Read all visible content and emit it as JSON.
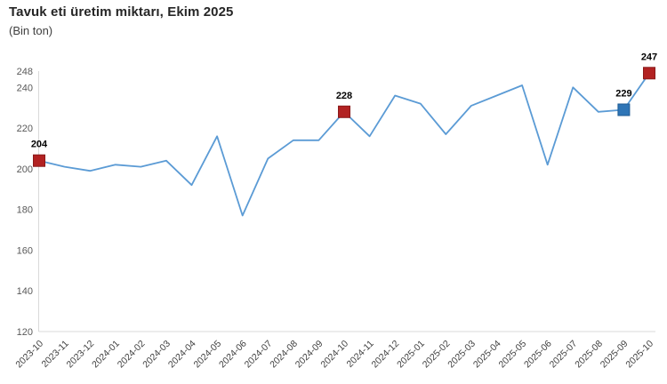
{
  "header": {
    "title": "Tavuk eti üretim miktarı, Ekim 2025",
    "subtitle": "(Bin ton)"
  },
  "chart_data": {
    "type": "line",
    "title": "Tavuk eti üretim miktarı, Ekim 2025",
    "subtitle": "(Bin ton)",
    "unit": "Bin ton",
    "x": [
      "2023-10",
      "2023-11",
      "2023-12",
      "2024-01",
      "2024-02",
      "2024-03",
      "2024-04",
      "2024-05",
      "2024-06",
      "2024-07",
      "2024-08",
      "2024-09",
      "2024-10",
      "2024-11",
      "2024-12",
      "2025-01",
      "2025-02",
      "2025-03",
      "2025-04",
      "2025-05",
      "2025-06",
      "2025-07",
      "2025-08",
      "2025-09",
      "2025-10"
    ],
    "values": [
      204,
      201,
      199,
      202,
      201,
      204,
      192,
      216,
      177,
      205,
      214,
      214,
      228,
      216,
      236,
      232,
      217,
      231,
      236,
      241,
      202,
      240,
      228,
      229,
      247
    ],
    "ylim": [
      120,
      248
    ],
    "yticks": [
      120,
      140,
      160,
      180,
      200,
      220,
      240,
      248
    ],
    "grid": false,
    "legend": null,
    "line_color": "#5b9bd5",
    "axis_color": "#d9d9d9",
    "tick_label_color": "#595959",
    "x_label_color": "#404040",
    "data_label_color": "#000000",
    "annotated_points": [
      {
        "x": "2023-10",
        "index": 0,
        "label": "204",
        "marker": "red-square",
        "color": "#b22222",
        "border": "#8a1a1a"
      },
      {
        "x": "2024-10",
        "index": 12,
        "label": "228",
        "marker": "red-square",
        "color": "#b22222",
        "border": "#8a1a1a"
      },
      {
        "x": "2025-09",
        "index": 23,
        "label": "229",
        "marker": "blue-square",
        "color": "#2e75b6",
        "border": "#1f5c94"
      },
      {
        "x": "2025-10",
        "index": 24,
        "label": "247",
        "marker": "red-square",
        "color": "#b22222",
        "border": "#8a1a1a"
      }
    ]
  }
}
